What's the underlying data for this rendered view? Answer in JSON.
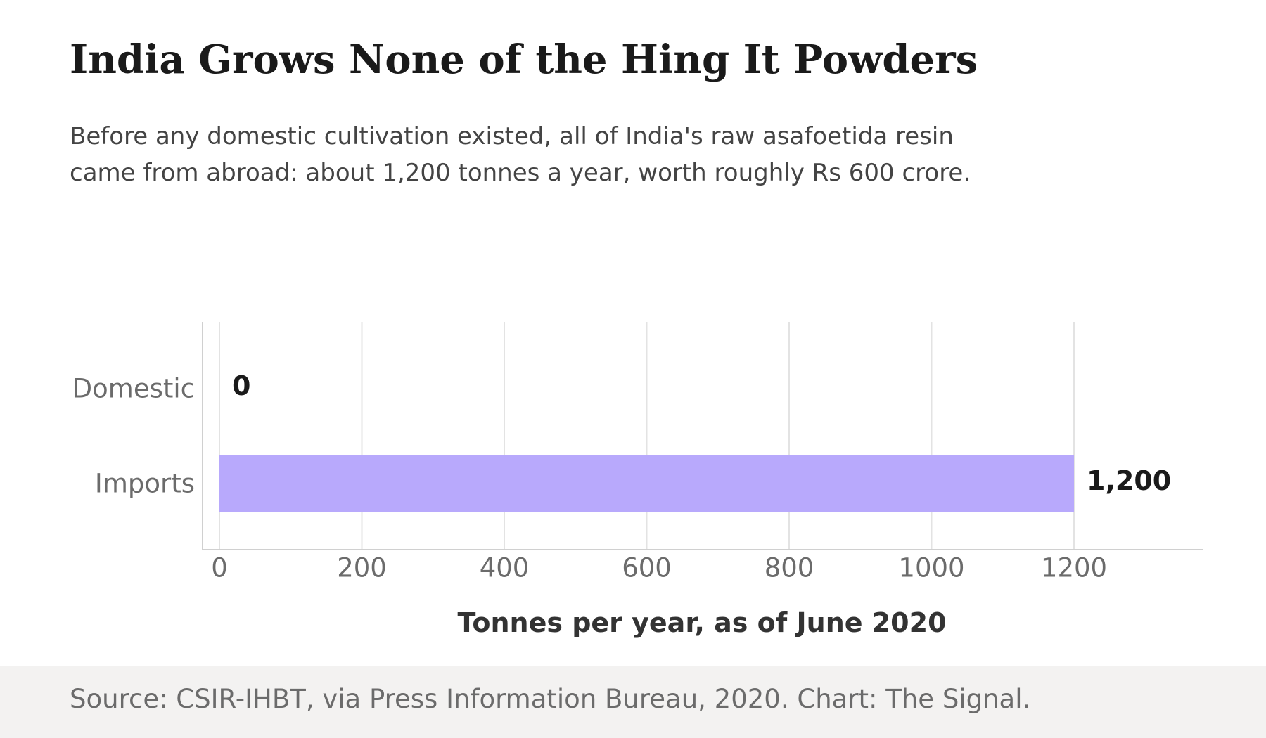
{
  "header": {
    "title": "India Grows None of the Hing It Powders",
    "subtitle": "Before any domestic cultivation existed, all of India's raw asafoetida resin came from abroad: about 1,200 tonnes a year, worth roughly Rs 600 crore."
  },
  "footer": {
    "source": "Source: CSIR-IHBT, via Press Information Bureau, 2020. Chart: The Signal."
  },
  "chart_data": {
    "type": "bar",
    "orientation": "horizontal",
    "categories": [
      "Domestic",
      "Imports"
    ],
    "values": [
      0,
      1200
    ],
    "value_labels": [
      "0",
      "1,200"
    ],
    "xlabel": "Tonnes per year, as of June 2020",
    "ylabel": "",
    "xlim": [
      0,
      1320
    ],
    "x_ticks": [
      0,
      200,
      400,
      600,
      800,
      1000,
      1200
    ],
    "grid": "vertical",
    "bar_color": "#b8a9fc",
    "legend": "none"
  }
}
